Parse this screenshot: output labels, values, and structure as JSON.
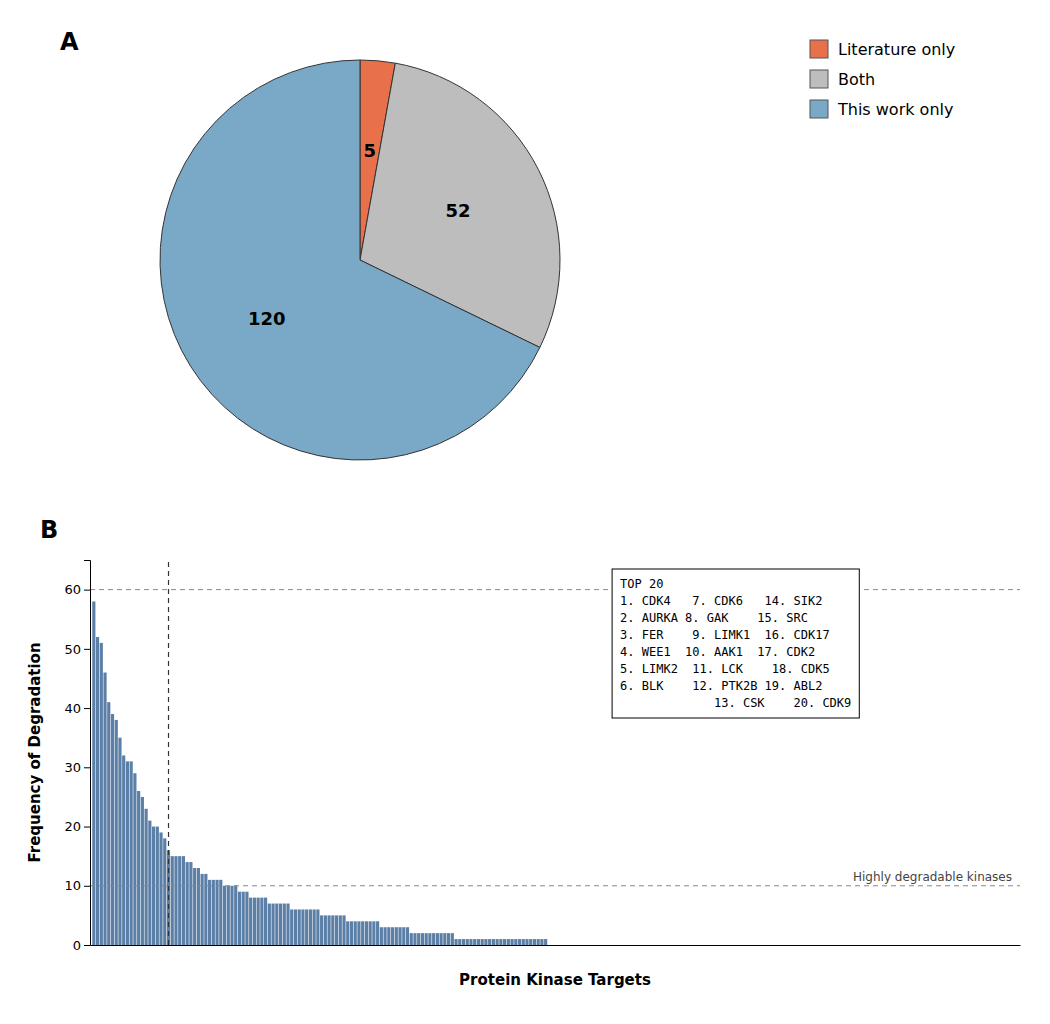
{
  "chart_data": [
    {
      "type": "pie",
      "title": "A",
      "categories": [
        "Literature only",
        "Both",
        "This work only"
      ],
      "values": [
        5,
        52,
        120
      ],
      "colors": [
        "#E8704A",
        "#BDBDBD",
        "#7AA8C7"
      ],
      "data_labels": true,
      "legend": "upper right"
    },
    {
      "type": "bar",
      "title": "B",
      "xlabel": "Protein Kinase Targets",
      "ylabel": "Frequency of Degradation",
      "color": "#5B7FA6",
      "values": [
        58,
        52,
        51,
        46,
        41,
        39,
        38,
        35,
        32,
        31,
        31,
        29,
        26,
        25,
        23,
        21,
        20,
        20,
        19,
        18,
        16,
        15,
        15,
        15,
        15,
        14,
        14,
        13,
        13,
        12,
        12,
        11,
        11,
        11,
        11,
        10,
        10,
        10,
        10,
        9,
        9,
        9,
        8,
        8,
        8,
        8,
        8,
        7,
        7,
        7,
        7,
        7,
        7,
        6,
        6,
        6,
        6,
        6,
        6,
        6,
        6,
        5,
        5,
        5,
        5,
        5,
        5,
        5,
        4,
        4,
        4,
        4,
        4,
        4,
        4,
        4,
        4,
        3,
        3,
        3,
        3,
        3,
        3,
        3,
        3,
        2,
        2,
        2,
        2,
        2,
        2,
        2,
        2,
        2,
        2,
        2,
        2,
        1,
        1,
        1,
        1,
        1,
        1,
        1,
        1,
        1,
        1,
        1,
        1,
        1,
        1,
        1,
        1,
        1,
        1,
        1,
        1,
        1,
        1,
        1,
        1,
        1,
        0,
        0,
        0,
        0,
        0,
        0,
        0,
        0,
        0,
        0,
        0,
        0,
        0,
        0,
        0,
        0,
        0,
        0,
        0,
        0,
        0,
        0,
        0,
        0,
        0,
        0,
        0,
        0,
        0,
        0,
        0,
        0,
        0,
        0,
        0,
        0,
        0,
        0,
        0,
        0,
        0,
        0,
        0,
        0,
        0,
        0,
        0,
        0,
        0,
        0,
        0,
        0,
        0,
        0,
        0,
        0,
        0,
        0,
        0,
        0,
        0,
        0,
        0,
        0,
        0,
        0,
        0,
        0,
        0,
        0,
        0,
        0,
        0,
        0,
        0,
        0,
        0,
        0,
        0,
        0,
        0,
        0,
        0,
        0,
        0,
        0,
        0,
        0,
        0,
        0,
        0,
        0,
        0,
        0,
        0,
        0,
        0,
        0,
        0,
        0,
        0,
        0,
        0,
        0,
        0,
        0,
        0,
        0,
        0,
        0,
        0,
        0,
        0,
        0,
        0,
        0,
        0,
        0,
        0,
        0,
        0,
        0,
        0,
        0,
        0,
        0
      ],
      "ylim": [
        0,
        65
      ],
      "yticks": [
        0,
        10,
        20,
        30,
        40,
        50,
        60
      ],
      "tick_labels": "y",
      "grid": false,
      "hlines": [
        60,
        10
      ],
      "vlines": [
        20
      ],
      "annotations": [
        {
          "text": "Highly degradable kinases",
          "y": 10
        }
      ],
      "top_list": {
        "title": "TOP 20",
        "lines": [
          "1. CDK4   7. CDK6   14. SIK2",
          "2. AURKA 8. GAK    15. SRC",
          "3. FER    9. LIMK1  16. CDK17",
          "4. WEE1  10. AAK1  17. CDK2",
          "5. LIMK2  11. LCK    18. CDK5",
          "6. BLK    12. PTK2B 19. ABL2",
          "             13. CSK    20. CDK9"
        ]
      }
    }
  ]
}
